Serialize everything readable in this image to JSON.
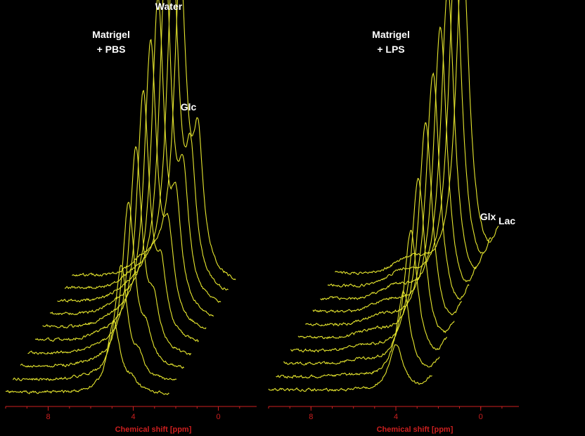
{
  "chart_data": [
    {
      "type": "line",
      "title": "",
      "annotations": {
        "condition_line1": "Matrigel",
        "condition_line2": "+ PBS",
        "peaks": [
          {
            "label": "Water",
            "ppm": 2.2
          },
          {
            "label": "Glc",
            "ppm": 0.9
          }
        ]
      },
      "xlabel": "Chemical shift [ppm]",
      "x_ticks": [
        "8",
        "4",
        "0"
      ],
      "x_tick_values": [
        8,
        4,
        0
      ],
      "xlim": [
        10,
        -1.8
      ],
      "x_reversed": true,
      "n_traces": 10,
      "trace_peaks": [
        {
          "ppm": 2.2,
          "width": 0.55,
          "amplitudes": [
            0.22,
            0.35,
            0.5,
            0.62,
            0.75,
            0.86,
            0.95,
            1.0,
            0.98,
            0.92
          ]
        },
        {
          "ppm": 0.9,
          "width": 0.45,
          "amplitudes": [
            0.03,
            0.05,
            0.08,
            0.12,
            0.17,
            0.22,
            0.27,
            0.31,
            0.34,
            0.36
          ]
        }
      ],
      "grid": false,
      "colors": {
        "trace": "#e6e62e",
        "axis": "#cc1f1f",
        "annotation": "#ffffff"
      }
    },
    {
      "type": "line",
      "title": "",
      "annotations": {
        "condition_line1": "Matrigel",
        "condition_line2": "+ LPS",
        "peaks": [
          {
            "label": "Glx",
            "ppm": -1.8
          },
          {
            "label": "Lac",
            "ppm": -3.0
          }
        ]
      },
      "xlabel": "Chemical shift [ppm]",
      "x_ticks": [
        "8",
        "4",
        "0"
      ],
      "x_tick_values": [
        8,
        4,
        0
      ],
      "xlim": [
        10,
        -1.8
      ],
      "x_reversed": true,
      "n_traces": 10,
      "trace_peaks": [
        {
          "ppm": 0.8,
          "width": 0.6,
          "amplitudes": [
            0.14,
            0.26,
            0.4,
            0.52,
            0.65,
            0.76,
            0.86,
            0.94,
            1.0,
            0.98
          ]
        },
        {
          "ppm": -1.8,
          "width": 0.45,
          "amplitudes": [
            0.04,
            0.05,
            0.06,
            0.07,
            0.08,
            0.09,
            0.1,
            0.1,
            0.11,
            0.11
          ]
        },
        {
          "ppm": -3.0,
          "width": 0.5,
          "amplitudes": [
            0.04,
            0.05,
            0.06,
            0.07,
            0.08,
            0.09,
            0.09,
            0.1,
            0.1,
            0.1
          ]
        }
      ],
      "grid": false,
      "colors": {
        "trace": "#e6e62e",
        "axis": "#cc1f1f",
        "annotation": "#ffffff"
      }
    }
  ]
}
